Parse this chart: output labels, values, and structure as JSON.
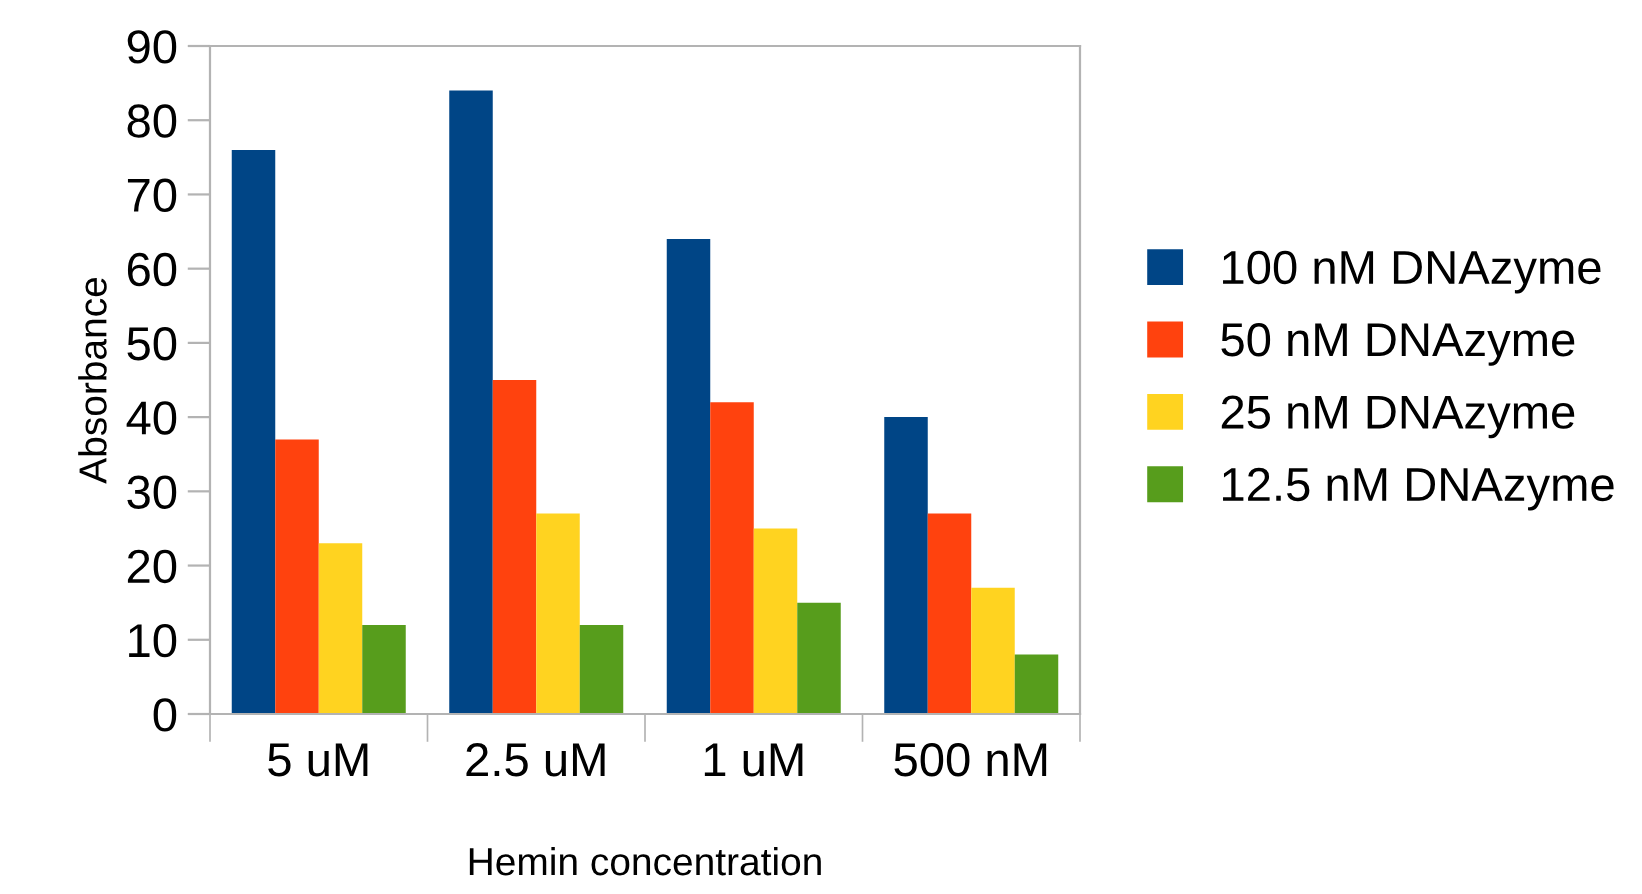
{
  "chart_data": {
    "type": "bar",
    "xlabel": "Hemin concentration",
    "ylabel": "Absorbance",
    "categories": [
      "5 uM",
      "2.5 uM",
      "1 uM",
      "500 nM"
    ],
    "series": [
      {
        "name": "100 nM DNAzyme",
        "color": "#004586",
        "values": [
          76,
          84,
          64,
          40
        ]
      },
      {
        "name": "50 nM DNAzyme",
        "color": "#ff420e",
        "values": [
          37,
          45,
          42,
          27
        ]
      },
      {
        "name": "25 nM DNAzyme",
        "color": "#ffd320",
        "values": [
          23,
          27,
          25,
          17
        ]
      },
      {
        "name": "12.5 nM DNAzyme",
        "color": "#579d1c",
        "values": [
          12,
          12,
          15,
          8
        ]
      }
    ],
    "ylim": [
      0,
      90
    ],
    "yticks": [
      0,
      10,
      20,
      30,
      40,
      50,
      60,
      70,
      80,
      90
    ],
    "grid": false,
    "legend": "right"
  }
}
